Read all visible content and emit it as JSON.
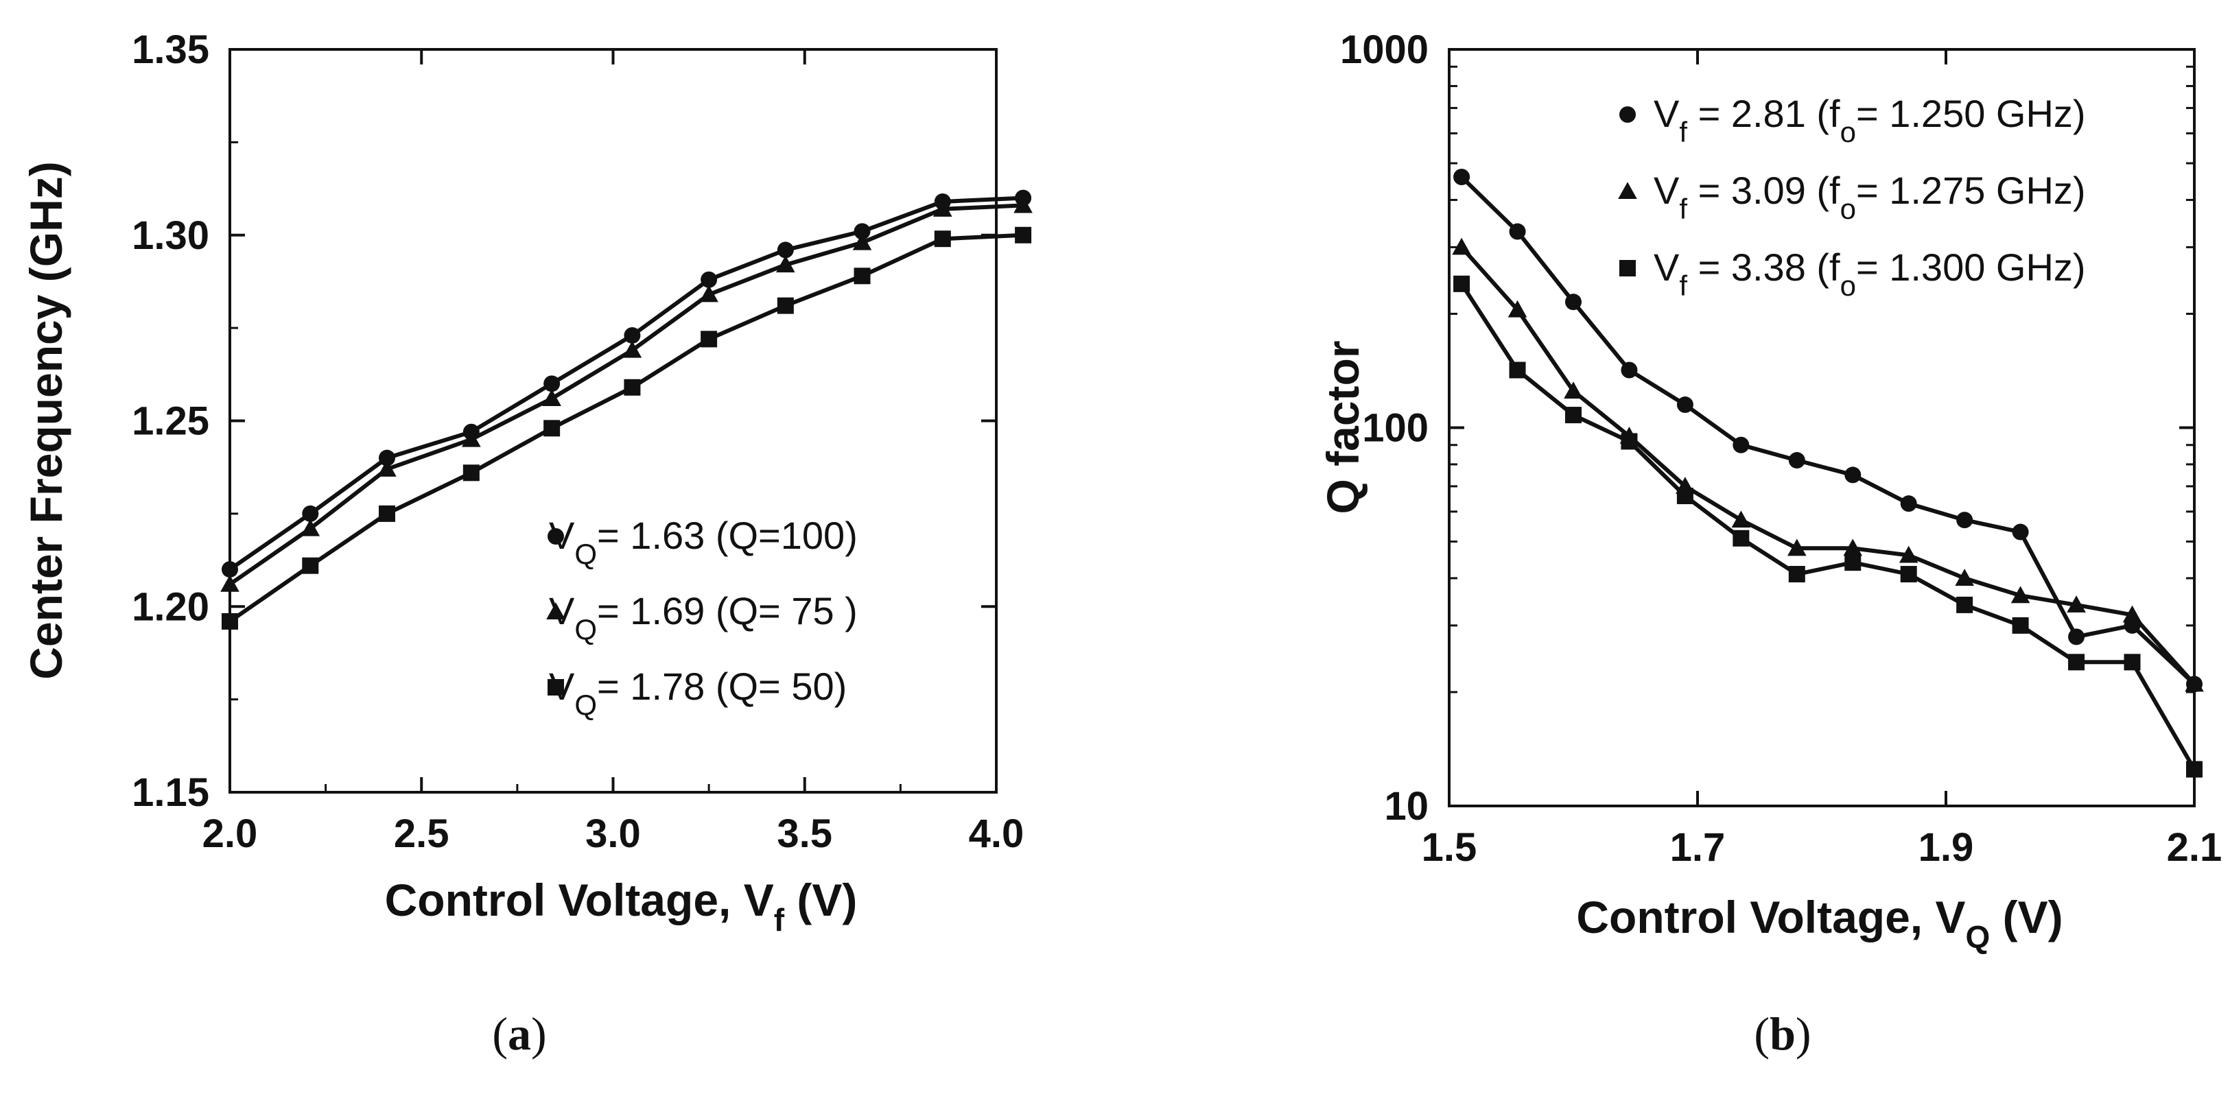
{
  "chart_data": [
    {
      "type": "line",
      "panel_label": "a",
      "title": "",
      "xlabel": {
        "main": "Control Voltage, V",
        "sub": "f",
        "unit": "(V)"
      },
      "ylabel": "Center Frequency (GHz)",
      "xlim": [
        2.0,
        4.0
      ],
      "ylim": [
        1.15,
        1.35
      ],
      "y_scale": "linear",
      "x_ticks": [
        "2.0",
        "2.5",
        "3.0",
        "3.5",
        "4.0"
      ],
      "y_ticks": [
        "1.15",
        "1.20",
        "1.25",
        "1.30",
        "1.35"
      ],
      "legend_position": "bottom-right",
      "series": [
        {
          "name": "V_Q= 1.63 (Q=100)",
          "legend": {
            "main": "V",
            "sub": "Q",
            "rest": "= 1.63 (Q=100)"
          },
          "marker": "circle",
          "x": [
            2.0,
            2.21,
            2.41,
            2.63,
            2.84,
            3.05,
            3.25,
            3.45,
            3.65,
            3.86,
            4.07
          ],
          "y": [
            1.21,
            1.225,
            1.24,
            1.247,
            1.26,
            1.273,
            1.288,
            1.296,
            1.301,
            1.309,
            1.31
          ]
        },
        {
          "name": "V_Q= 1.69 (Q= 75 )",
          "legend": {
            "main": "V",
            "sub": "Q",
            "rest": "= 1.69 (Q= 75 )"
          },
          "marker": "triangle",
          "x": [
            2.0,
            2.21,
            2.41,
            2.63,
            2.84,
            3.05,
            3.25,
            3.45,
            3.65,
            3.86,
            4.07
          ],
          "y": [
            1.206,
            1.221,
            1.237,
            1.245,
            1.256,
            1.269,
            1.284,
            1.292,
            1.298,
            1.307,
            1.308
          ]
        },
        {
          "name": "V_Q= 1.78 (Q= 50)",
          "legend": {
            "main": "V",
            "sub": "Q",
            "rest": "= 1.78 (Q= 50)"
          },
          "marker": "square",
          "x": [
            2.0,
            2.21,
            2.41,
            2.63,
            2.84,
            3.05,
            3.25,
            3.45,
            3.65,
            3.86,
            4.07
          ],
          "y": [
            1.196,
            1.211,
            1.225,
            1.236,
            1.248,
            1.259,
            1.272,
            1.281,
            1.289,
            1.299,
            1.3
          ]
        }
      ]
    },
    {
      "type": "line",
      "panel_label": "b",
      "title": "",
      "xlabel": {
        "main": "Control Voltage, V",
        "sub": "Q",
        "unit": "(V)"
      },
      "ylabel": "Q factor",
      "xlim": [
        1.5,
        2.1
      ],
      "ylim": [
        10,
        1000
      ],
      "y_scale": "log",
      "x_ticks": [
        "1.5",
        "1.7",
        "1.9",
        "2.1"
      ],
      "y_ticks": [
        "10",
        "100",
        "1000"
      ],
      "legend_position": "top-right",
      "series": [
        {
          "name": "V_f = 2.81 (f_o= 1.250 GHz)",
          "legend": {
            "main": "V",
            "sub": "f",
            "rest1": " = 2.81 (f",
            "sub2": "o",
            "rest2": "= 1.250 GHz)"
          },
          "marker": "circle",
          "x": [
            1.51,
            1.555,
            1.6,
            1.645,
            1.69,
            1.735,
            1.78,
            1.825,
            1.87,
            1.915,
            1.96,
            2.005,
            2.05,
            2.1
          ],
          "y": [
            460,
            330,
            215,
            142,
            115,
            90,
            82,
            75,
            63,
            57,
            53,
            28,
            30,
            21
          ]
        },
        {
          "name": "V_f = 3.09 (f_o= 1.275 GHz)",
          "legend": {
            "main": "V",
            "sub": "f",
            "rest1": " = 3.09 (f",
            "sub2": "o",
            "rest2": "= 1.275 GHz)"
          },
          "marker": "triangle",
          "x": [
            1.51,
            1.555,
            1.6,
            1.645,
            1.69,
            1.735,
            1.78,
            1.825,
            1.87,
            1.915,
            1.96,
            2.005,
            2.05,
            2.1
          ],
          "y": [
            300,
            205,
            125,
            95,
            70,
            57,
            48,
            48,
            46,
            40,
            36,
            34,
            32,
            21
          ]
        },
        {
          "name": "V_f = 3.38 (f_o= 1.300 GHz)",
          "legend": {
            "main": "V",
            "sub": "f",
            "rest1": " = 3.38 (f",
            "sub2": "o",
            "rest2": "= 1.300 GHz)"
          },
          "marker": "square",
          "x": [
            1.51,
            1.555,
            1.6,
            1.645,
            1.69,
            1.735,
            1.78,
            1.825,
            1.87,
            1.915,
            1.96,
            2.005,
            2.05,
            2.1
          ],
          "y": [
            240,
            142,
            108,
            92,
            66,
            51,
            41,
            44,
            41,
            34,
            30,
            24,
            24,
            12.5
          ]
        }
      ]
    }
  ]
}
